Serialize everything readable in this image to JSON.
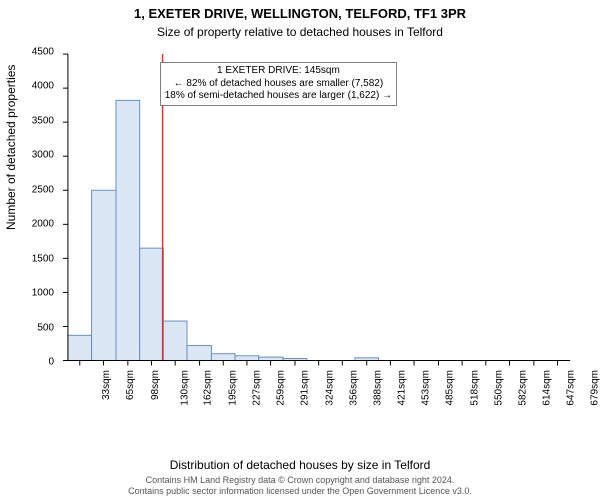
{
  "title": "1, EXETER DRIVE, WELLINGTON, TELFORD, TF1 3PR",
  "subtitle": "Size of property relative to detached houses in Telford",
  "ylabel": "Number of detached properties",
  "xlabel": "Distribution of detached houses by size in Telford",
  "copyright_line1": "Contains HM Land Registry data © Crown copyright and database right 2024.",
  "copyright_line2": "Contains public sector information licensed under the Open Government Licence v3.0.",
  "chart": {
    "type": "histogram",
    "background_color": "#ffffff",
    "axis_color": "#000000",
    "bar_fill": "#dbe7f5",
    "bar_stroke": "#6a8fbf",
    "bar_stroke_width": 1,
    "indicator_line_color": "#e03030",
    "indicator_line_width": 1.5,
    "indicator_value": 145,
    "xlim": [
      17,
      696
    ],
    "ylim": [
      0,
      4500
    ],
    "ytick_step": 500,
    "yticks": [
      0,
      500,
      1000,
      1500,
      2000,
      2500,
      3000,
      3500,
      4000,
      4500
    ],
    "xtick_labels": [
      "33sqm",
      "65sqm",
      "98sqm",
      "130sqm",
      "162sqm",
      "195sqm",
      "227sqm",
      "259sqm",
      "291sqm",
      "324sqm",
      "356sqm",
      "388sqm",
      "421sqm",
      "453sqm",
      "485sqm",
      "518sqm",
      "550sqm",
      "582sqm",
      "614sqm",
      "647sqm",
      "679sqm"
    ],
    "xtick_values": [
      33,
      65,
      98,
      130,
      162,
      195,
      227,
      259,
      291,
      324,
      356,
      388,
      421,
      453,
      485,
      518,
      550,
      582,
      614,
      647,
      679
    ],
    "tick_fontsize": 10,
    "label_fontsize": 12,
    "bars": [
      {
        "x0": 17,
        "x1": 49,
        "y": 370
      },
      {
        "x0": 49,
        "x1": 82,
        "y": 2500
      },
      {
        "x0": 82,
        "x1": 114,
        "y": 3820
      },
      {
        "x0": 114,
        "x1": 146,
        "y": 1650
      },
      {
        "x0": 146,
        "x1": 178,
        "y": 580
      },
      {
        "x0": 178,
        "x1": 211,
        "y": 220
      },
      {
        "x0": 211,
        "x1": 243,
        "y": 100
      },
      {
        "x0": 243,
        "x1": 275,
        "y": 70
      },
      {
        "x0": 275,
        "x1": 308,
        "y": 50
      },
      {
        "x0": 308,
        "x1": 340,
        "y": 30
      },
      {
        "x0": 340,
        "x1": 372,
        "y": 0
      },
      {
        "x0": 372,
        "x1": 405,
        "y": 0
      },
      {
        "x0": 405,
        "x1": 437,
        "y": 40
      },
      {
        "x0": 437,
        "x1": 469,
        "y": 0
      },
      {
        "x0": 469,
        "x1": 502,
        "y": 0
      },
      {
        "x0": 502,
        "x1": 534,
        "y": 0
      },
      {
        "x0": 534,
        "x1": 566,
        "y": 0
      },
      {
        "x0": 566,
        "x1": 598,
        "y": 0
      },
      {
        "x0": 598,
        "x1": 631,
        "y": 0
      },
      {
        "x0": 631,
        "x1": 663,
        "y": 0
      },
      {
        "x0": 663,
        "x1": 696,
        "y": 0
      }
    ]
  },
  "annotation": {
    "line1": "1 EXETER DRIVE: 145sqm",
    "line2": "← 82% of detached houses are smaller (7,582)",
    "line3": "18% of semi-detached houses are larger (1,622) →",
    "border_color": "#808080",
    "background_color": "#ffffff",
    "fontsize": 10
  }
}
